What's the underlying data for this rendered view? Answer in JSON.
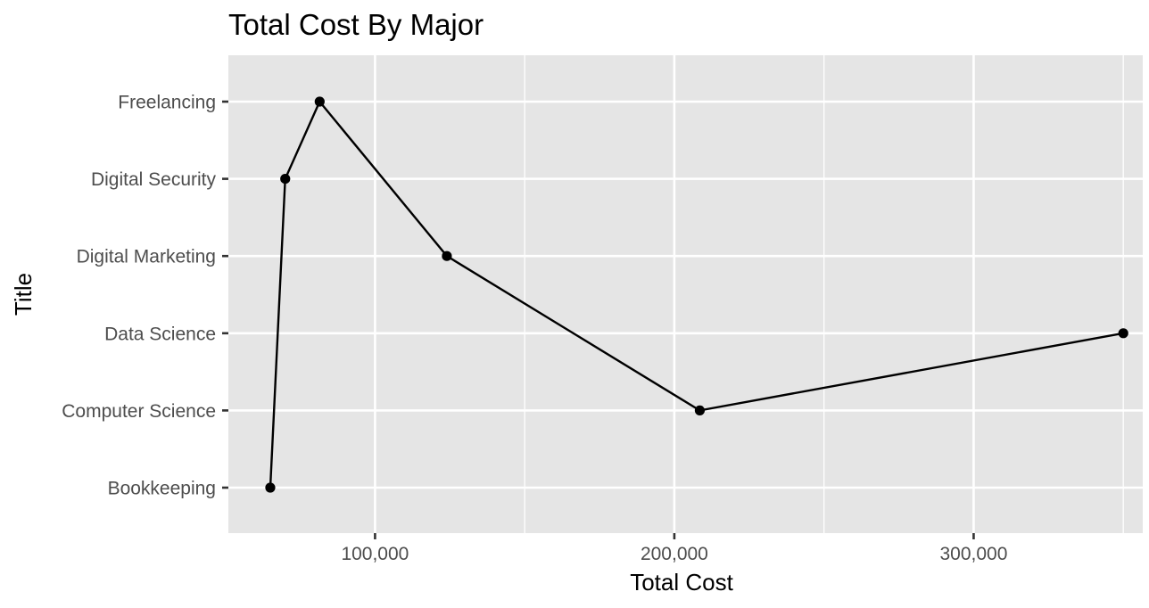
{
  "chart_data": {
    "type": "line",
    "title": "Total Cost By Major",
    "xlabel": "Total Cost",
    "ylabel": "Title",
    "categories": [
      "Bookkeeping",
      "Computer Science",
      "Data Science",
      "Digital Marketing",
      "Digital Security",
      "Freelancing"
    ],
    "path": [
      {
        "x": 65000,
        "y": "Bookkeeping"
      },
      {
        "x": 70000,
        "y": "Digital Security"
      },
      {
        "x": 81500,
        "y": "Freelancing"
      },
      {
        "x": 124000,
        "y": "Digital Marketing"
      },
      {
        "x": 208500,
        "y": "Computer Science"
      },
      {
        "x": 350000,
        "y": "Data Science"
      }
    ],
    "xlim": [
      51000,
      356500
    ],
    "xticks": [
      100000,
      200000,
      300000
    ],
    "xtick_labels": [
      "100,000",
      "200,000",
      "300,000"
    ],
    "grid": true,
    "legend": "none"
  }
}
